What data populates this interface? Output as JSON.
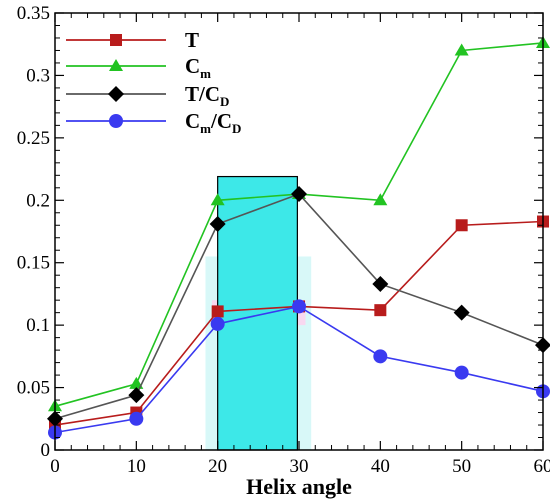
{
  "chart_data": {
    "type": "line",
    "title": "",
    "xlabel": "Helix angle",
    "ylabel": "",
    "x": [
      0,
      10,
      20,
      30,
      40,
      50,
      60
    ],
    "xlim": [
      0,
      60
    ],
    "ylim": [
      0,
      0.35
    ],
    "xticks": [
      0,
      10,
      20,
      30,
      40,
      50,
      60
    ],
    "xtick_labels": [
      "0",
      "10",
      "20",
      "30",
      "40",
      "50",
      "60"
    ],
    "yticks": [
      0,
      0.05,
      0.1,
      0.15,
      0.2,
      0.25,
      0.3,
      0.35
    ],
    "ytick_labels": [
      "0",
      "0.05",
      "0.1",
      "0.15",
      "0.2",
      "0.25",
      "0.3",
      "0.35"
    ],
    "grid": false,
    "legend_position": "top-left",
    "series": [
      {
        "name": "T",
        "legend_main": "T",
        "legend_sub": "",
        "legend_tail": "",
        "values": [
          0.02,
          0.03,
          0.111,
          0.115,
          0.112,
          0.18,
          0.183
        ],
        "color": "#b81c1c",
        "marker": "square"
      },
      {
        "name": "Cm",
        "legend_main": "C",
        "legend_sub": "m",
        "legend_tail": "",
        "values": [
          0.035,
          0.053,
          0.2,
          0.205,
          0.2,
          0.32,
          0.326
        ],
        "color": "#22c322",
        "marker": "triangle"
      },
      {
        "name": "T/CD",
        "legend_main": "T/C",
        "legend_sub": "D",
        "legend_tail": "",
        "values": [
          0.025,
          0.044,
          0.181,
          0.205,
          0.133,
          0.11,
          0.084
        ],
        "color": "#000000",
        "line_color": "#555555",
        "marker": "diamond"
      },
      {
        "name": "Cm/CD",
        "legend_main": "C",
        "legend_sub": "m",
        "legend_tail": "/C",
        "legend_sub2": "D",
        "values": [
          0.014,
          0.025,
          0.101,
          0.115,
          0.075,
          0.062,
          0.047
        ],
        "color": "#3a3af0",
        "marker": "circle"
      }
    ],
    "highlights": [
      {
        "type": "band",
        "x0": 18.5,
        "x1": 31.5,
        "y0": 0,
        "y1": 0.155,
        "color": "#d8f8f8"
      },
      {
        "type": "band",
        "x0": 19.3,
        "x1": 30.8,
        "y0": 0.1,
        "y1": 0.12,
        "color": "#f8d8f0"
      },
      {
        "type": "box",
        "x0": 20,
        "x1": 29.8,
        "y0": 0,
        "y1": 0.219,
        "color": "#3de8e8"
      }
    ]
  }
}
